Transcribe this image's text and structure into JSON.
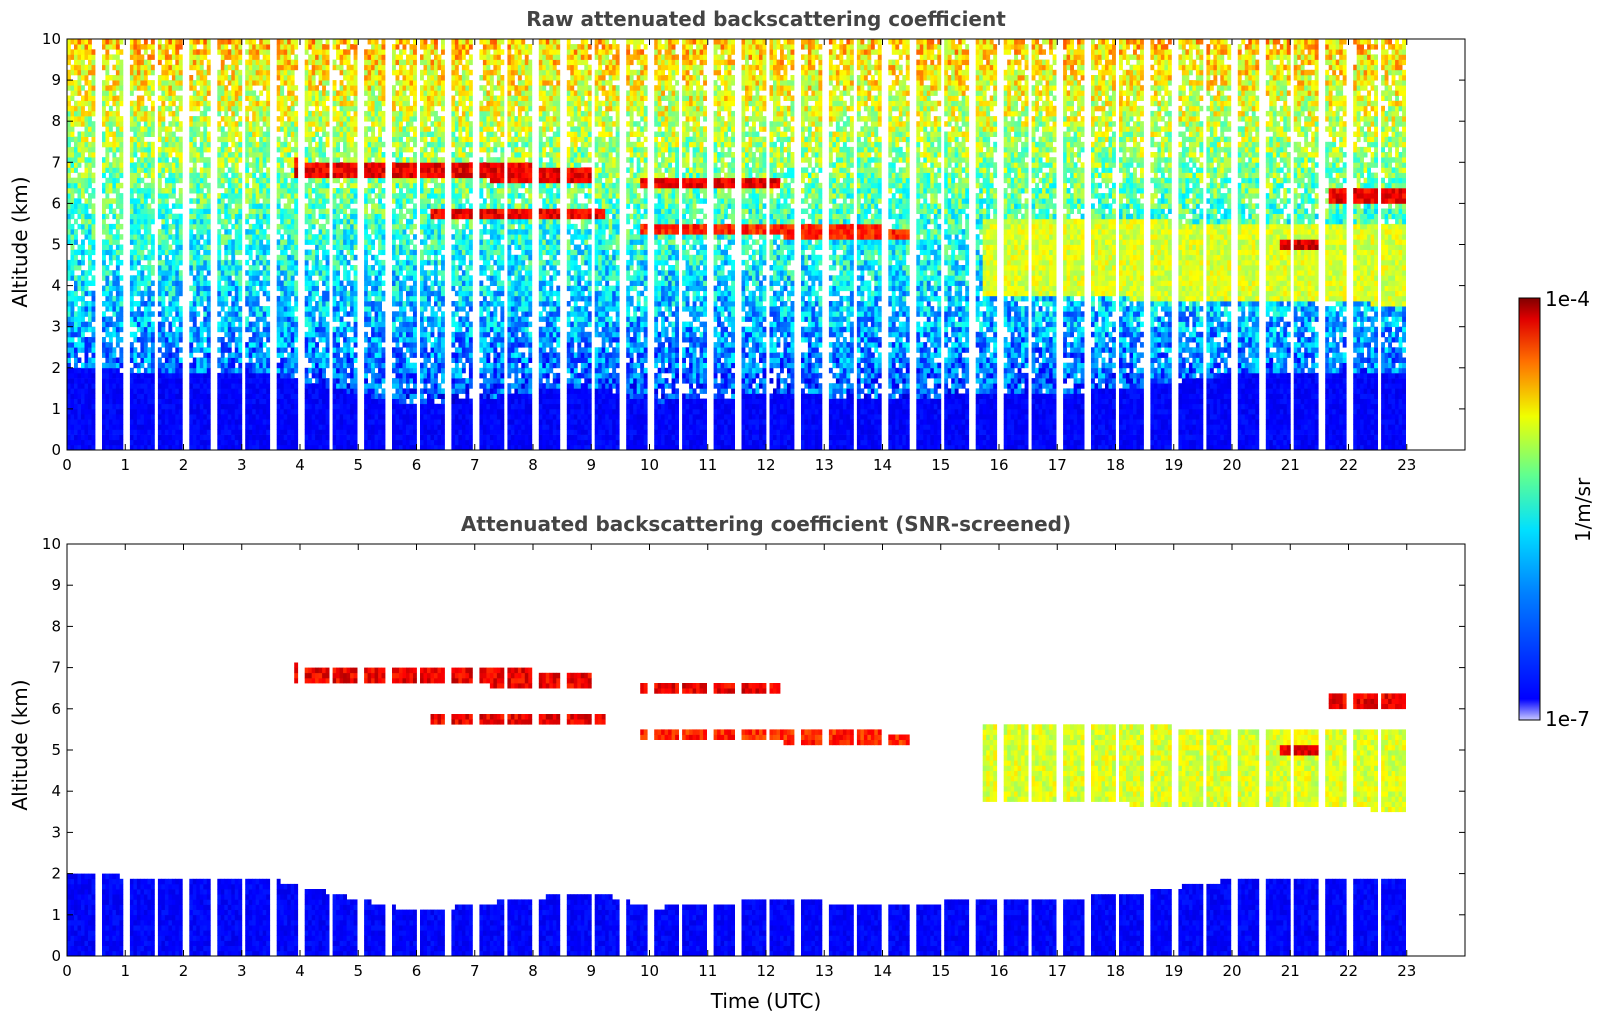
{
  "chart_data": [
    {
      "type": "heatmap",
      "title": "Raw attenuated backscattering coefficient",
      "ylabel": "Altitude (km)",
      "xlabel": "",
      "xlim": [
        0,
        24
      ],
      "ylim": [
        0,
        10
      ],
      "xticks": [
        "0",
        "1",
        "2",
        "3",
        "4",
        "5",
        "6",
        "7",
        "8",
        "9",
        "10",
        "11",
        "12",
        "13",
        "14",
        "15",
        "16",
        "17",
        "18",
        "19",
        "20",
        "21",
        "22",
        "23"
      ],
      "yticks": [
        "0",
        "1",
        "2",
        "3",
        "4",
        "5",
        "6",
        "7",
        "8",
        "9",
        "10"
      ],
      "data_end_time": 23,
      "profile_gaps_utc": [
        0.5,
        1.0,
        1.5,
        2.0,
        2.5,
        3.0,
        3.5,
        4.0,
        4.5,
        5.0,
        5.5,
        6.0,
        6.5,
        7.0,
        7.5,
        8.0,
        8.5,
        9.0,
        9.5,
        10.0,
        10.5,
        11.0,
        11.5,
        12.0,
        12.5,
        13.0,
        13.5,
        14.0,
        14.5,
        15.0,
        15.5,
        16.0,
        16.5,
        17.0,
        17.5,
        18.0,
        18.5,
        19.0,
        19.5,
        20.0,
        20.5,
        21.0,
        21.5,
        22.0,
        22.5,
        23.0
      ],
      "layers": [
        {
          "t0": 3.9,
          "t1": 9.0,
          "z0": 6.6,
          "z1": 7.0,
          "level": 0.95
        },
        {
          "t0": 6.2,
          "t1": 9.2,
          "z0": 5.55,
          "z1": 5.75,
          "level": 0.95
        },
        {
          "t0": 9.8,
          "t1": 12.2,
          "z0": 6.3,
          "z1": 6.6,
          "level": 0.95
        },
        {
          "t0": 9.8,
          "t1": 14.5,
          "z0": 5.2,
          "z1": 5.5,
          "level": 0.9
        },
        {
          "t0": 15.7,
          "t1": 23.0,
          "z0": 3.7,
          "z1": 5.6,
          "level": 0.65
        },
        {
          "t0": 20.8,
          "t1": 21.5,
          "z0": 4.85,
          "z1": 5.0,
          "level": 0.97
        },
        {
          "t0": 21.6,
          "t1": 23.0,
          "z0": 6.0,
          "z1": 6.25,
          "level": 0.95
        }
      ],
      "boundary_layer_top_km": [
        {
          "t": 0,
          "z": 1.9
        },
        {
          "t": 3.5,
          "z": 1.8
        },
        {
          "t": 5,
          "z": 1.3
        },
        {
          "t": 6,
          "z": 1.0
        },
        {
          "t": 7,
          "z": 1.2
        },
        {
          "t": 9,
          "z": 1.5
        },
        {
          "t": 10,
          "z": 1.1
        },
        {
          "t": 12,
          "z": 1.3
        },
        {
          "t": 14,
          "z": 1.2
        },
        {
          "t": 16,
          "z": 1.3
        },
        {
          "t": 18,
          "z": 1.4
        },
        {
          "t": 20,
          "z": 1.8
        },
        {
          "t": 23,
          "z": 1.8
        }
      ]
    },
    {
      "type": "heatmap",
      "title": "Attenuated backscattering coefficient (SNR-screened)",
      "ylabel": "Altitude (km)",
      "xlabel": "Time (UTC)",
      "xlim": [
        0,
        24
      ],
      "ylim": [
        0,
        10
      ],
      "xticks": [
        "0",
        "1",
        "2",
        "3",
        "4",
        "5",
        "6",
        "7",
        "8",
        "9",
        "10",
        "11",
        "12",
        "13",
        "14",
        "15",
        "16",
        "17",
        "18",
        "19",
        "20",
        "21",
        "22",
        "23"
      ],
      "yticks": [
        "0",
        "1",
        "2",
        "3",
        "4",
        "5",
        "6",
        "7",
        "8",
        "9",
        "10"
      ],
      "data_end_time": 23,
      "screened": true
    }
  ],
  "colorbar": {
    "label": "1/m/sr",
    "max_label": "1e-4",
    "min_label": "1e-7",
    "scale": "log",
    "range": [
      1e-07,
      0.0001
    ],
    "colormap": "jet"
  }
}
